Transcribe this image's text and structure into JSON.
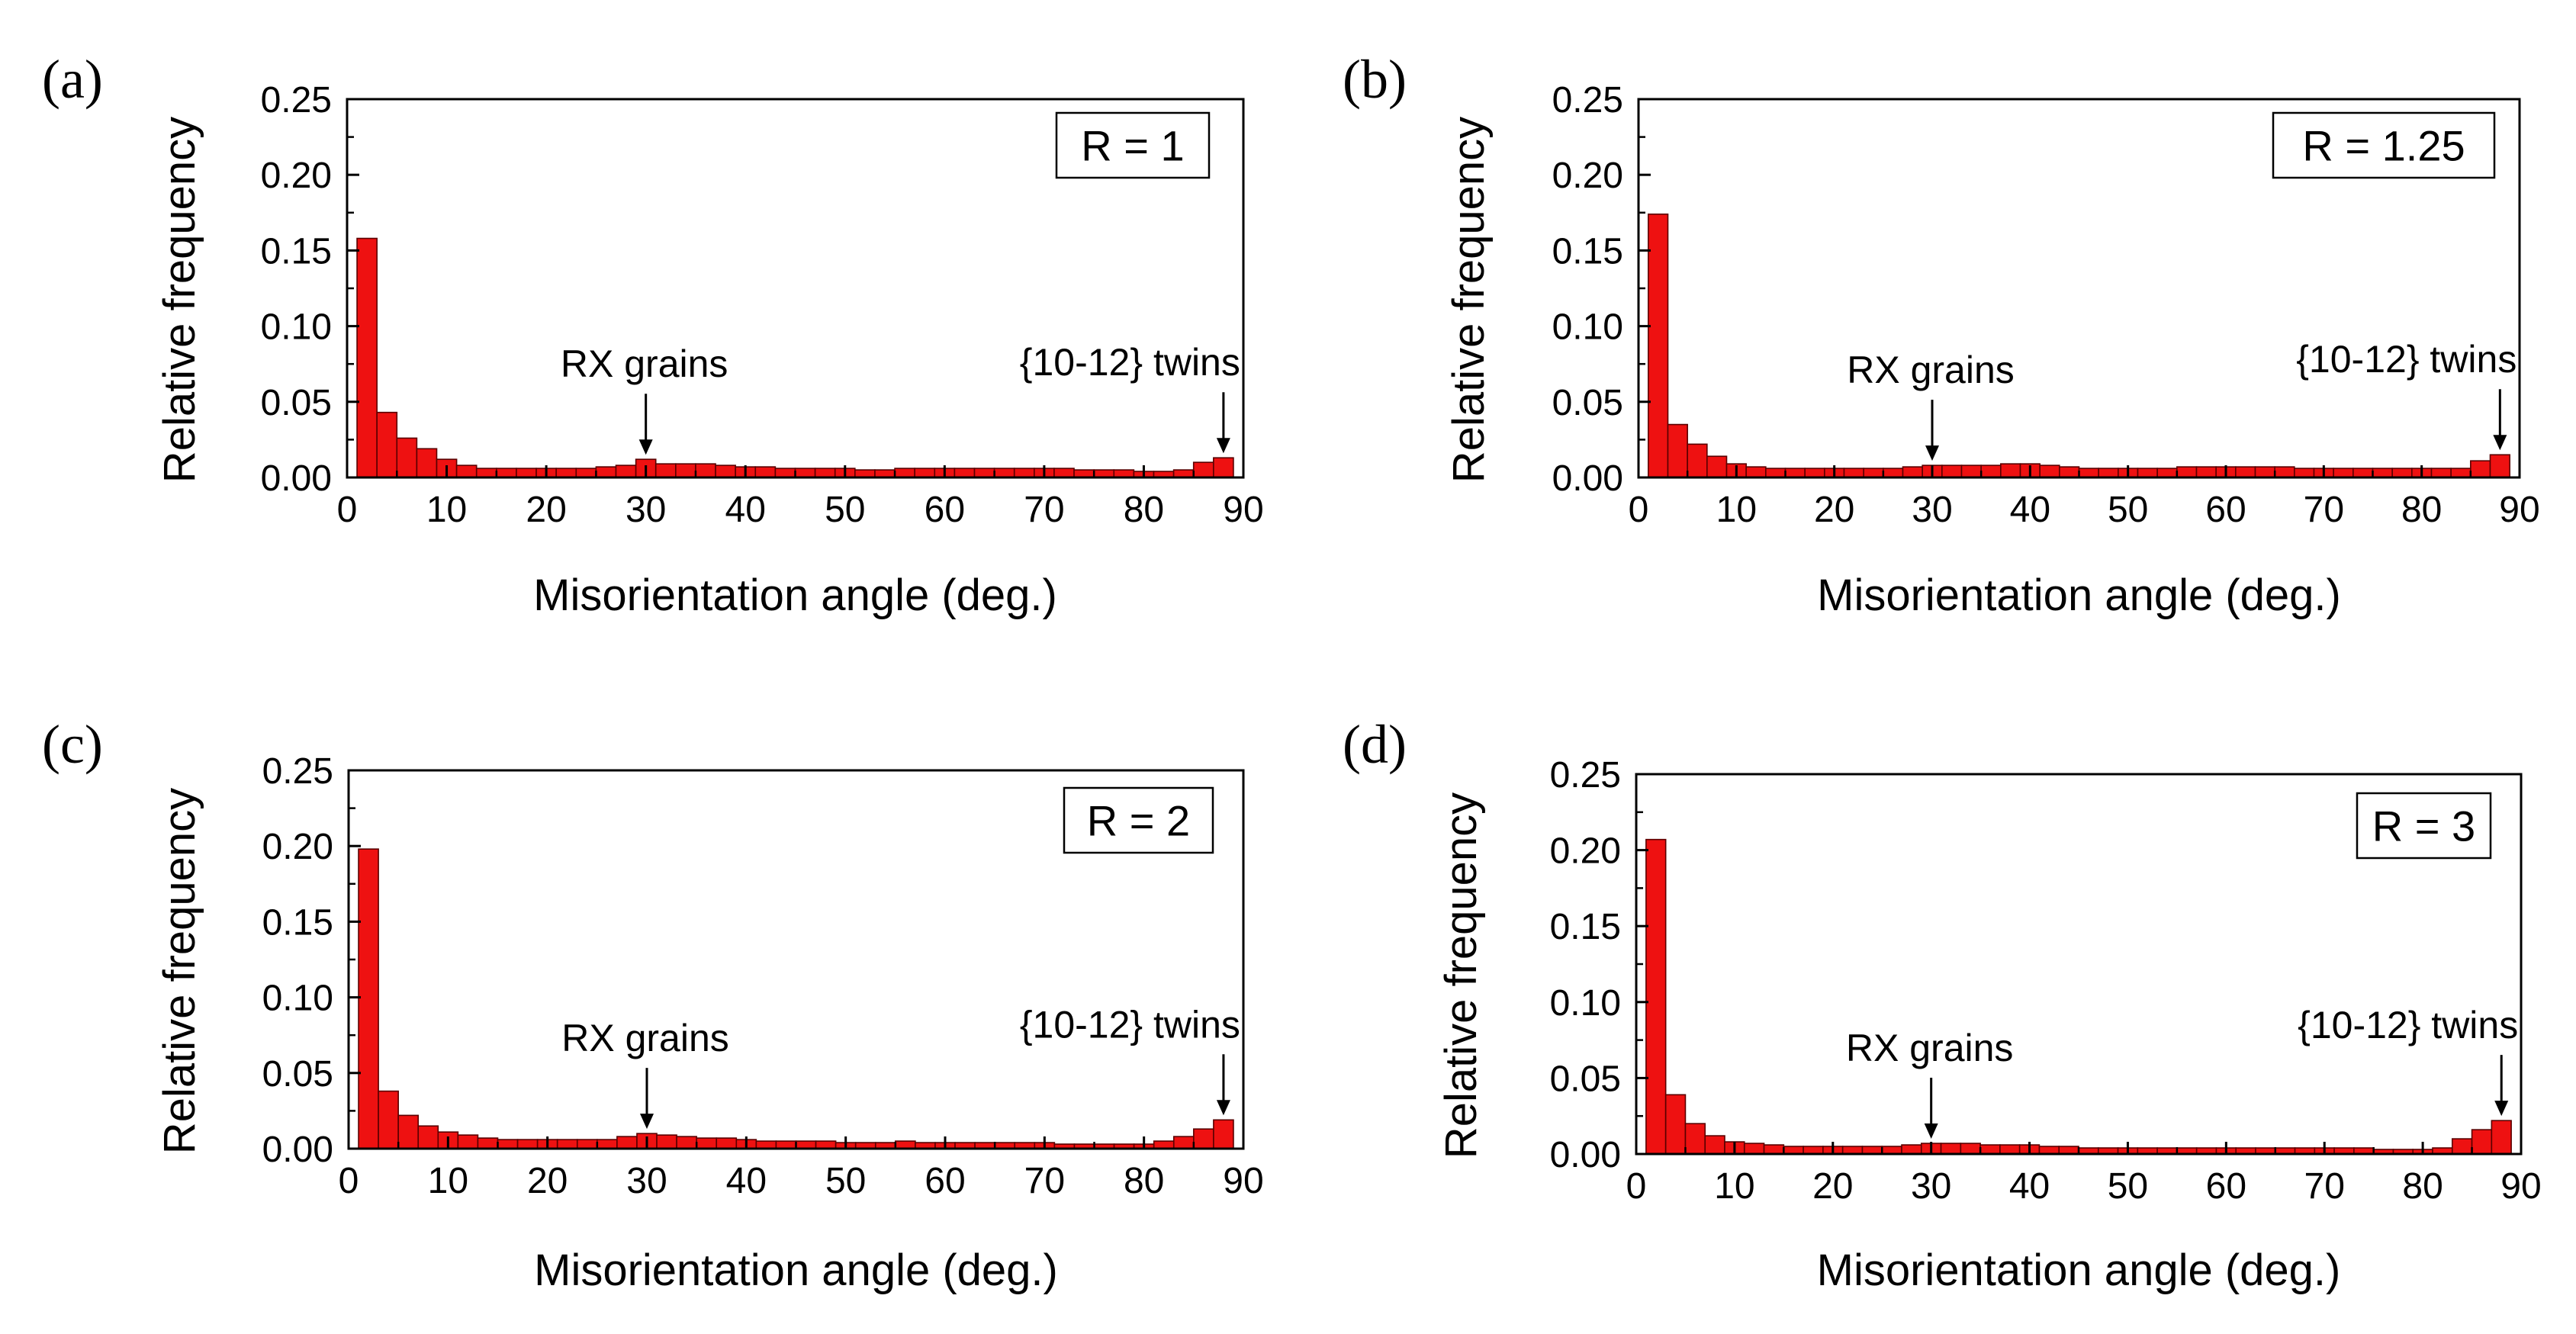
{
  "figure": {
    "panels": [
      {
        "letter": "(a)",
        "r_label": "R = 1",
        "bar_color": "#ee1111"
      },
      {
        "letter": "(b)",
        "r_label": "R = 1.25",
        "bar_color": "#ee1111"
      },
      {
        "letter": "(c)",
        "r_label": "R = 2",
        "bar_color": "#ee1111"
      },
      {
        "letter": "(d)",
        "r_label": "R = 3",
        "bar_color": "#ee1111"
      }
    ]
  },
  "chart_data": [
    {
      "type": "bar",
      "panel": "(a)",
      "label": "R = 1",
      "xlabel": "Misorientation angle (deg.)",
      "ylabel": "Relative frequency",
      "xlim": [
        0,
        90
      ],
      "ylim": [
        0,
        0.25
      ],
      "xticks": [
        "0",
        "10",
        "20",
        "30",
        "40",
        "50",
        "60",
        "70",
        "80",
        "90"
      ],
      "yticks": [
        "0.00",
        "0.05",
        "0.10",
        "0.15",
        "0.20",
        "0.25"
      ],
      "bin_width": 2,
      "x": [
        2,
        4,
        6,
        8,
        10,
        12,
        14,
        16,
        18,
        20,
        22,
        24,
        26,
        28,
        30,
        32,
        34,
        36,
        38,
        40,
        42,
        44,
        46,
        48,
        50,
        52,
        54,
        56,
        58,
        60,
        62,
        64,
        66,
        68,
        70,
        72,
        74,
        76,
        78,
        80,
        82,
        84,
        86,
        88
      ],
      "values": [
        0.158,
        0.043,
        0.026,
        0.019,
        0.012,
        0.008,
        0.006,
        0.006,
        0.006,
        0.006,
        0.006,
        0.006,
        0.007,
        0.008,
        0.012,
        0.009,
        0.009,
        0.009,
        0.008,
        0.007,
        0.007,
        0.006,
        0.006,
        0.006,
        0.006,
        0.005,
        0.005,
        0.006,
        0.006,
        0.006,
        0.006,
        0.006,
        0.006,
        0.006,
        0.006,
        0.006,
        0.005,
        0.005,
        0.005,
        0.004,
        0.004,
        0.005,
        0.01,
        0.013
      ],
      "annotations": [
        {
          "text": "RX grains",
          "x": 30
        },
        {
          "text": "{10-12} twins",
          "x": 88
        }
      ]
    },
    {
      "type": "bar",
      "panel": "(b)",
      "label": "R = 1.25",
      "xlabel": "Misorientation angle (deg.)",
      "ylabel": "Relative frequency",
      "xlim": [
        0,
        90
      ],
      "ylim": [
        0,
        0.25
      ],
      "xticks": [
        "0",
        "10",
        "20",
        "30",
        "40",
        "50",
        "60",
        "70",
        "80",
        "90"
      ],
      "yticks": [
        "0.00",
        "0.05",
        "0.10",
        "0.15",
        "0.20",
        "0.25"
      ],
      "bin_width": 2,
      "x": [
        2,
        4,
        6,
        8,
        10,
        12,
        14,
        16,
        18,
        20,
        22,
        24,
        26,
        28,
        30,
        32,
        34,
        36,
        38,
        40,
        42,
        44,
        46,
        48,
        50,
        52,
        54,
        56,
        58,
        60,
        62,
        64,
        66,
        68,
        70,
        72,
        74,
        76,
        78,
        80,
        82,
        84,
        86,
        88
      ],
      "values": [
        0.174,
        0.035,
        0.022,
        0.014,
        0.009,
        0.007,
        0.006,
        0.006,
        0.006,
        0.006,
        0.006,
        0.006,
        0.006,
        0.007,
        0.008,
        0.008,
        0.008,
        0.008,
        0.009,
        0.009,
        0.008,
        0.007,
        0.006,
        0.006,
        0.006,
        0.006,
        0.006,
        0.007,
        0.007,
        0.007,
        0.007,
        0.007,
        0.007,
        0.006,
        0.006,
        0.006,
        0.006,
        0.006,
        0.006,
        0.006,
        0.006,
        0.006,
        0.011,
        0.015
      ],
      "annotations": [
        {
          "text": "RX grains",
          "x": 30
        },
        {
          "text": "{10-12} twins",
          "x": 88
        }
      ]
    },
    {
      "type": "bar",
      "panel": "(c)",
      "label": "R = 2",
      "xlabel": "Misorientation angle (deg.)",
      "ylabel": "Relative frequency",
      "xlim": [
        0,
        90
      ],
      "ylim": [
        0,
        0.25
      ],
      "xticks": [
        "0",
        "10",
        "20",
        "30",
        "40",
        "50",
        "60",
        "70",
        "80",
        "90"
      ],
      "yticks": [
        "0.00",
        "0.05",
        "0.10",
        "0.15",
        "0.20",
        "0.25"
      ],
      "bin_width": 2,
      "x": [
        2,
        4,
        6,
        8,
        10,
        12,
        14,
        16,
        18,
        20,
        22,
        24,
        26,
        28,
        30,
        32,
        34,
        36,
        38,
        40,
        42,
        44,
        46,
        48,
        50,
        52,
        54,
        56,
        58,
        60,
        62,
        64,
        66,
        68,
        70,
        72,
        74,
        76,
        78,
        80,
        82,
        84,
        86,
        88
      ],
      "values": [
        0.198,
        0.038,
        0.022,
        0.015,
        0.011,
        0.009,
        0.007,
        0.006,
        0.006,
        0.006,
        0.006,
        0.006,
        0.006,
        0.008,
        0.01,
        0.009,
        0.008,
        0.007,
        0.007,
        0.006,
        0.005,
        0.005,
        0.005,
        0.005,
        0.004,
        0.004,
        0.004,
        0.005,
        0.004,
        0.004,
        0.004,
        0.004,
        0.004,
        0.004,
        0.004,
        0.003,
        0.003,
        0.003,
        0.003,
        0.003,
        0.005,
        0.008,
        0.013,
        0.019
      ],
      "annotations": [
        {
          "text": "RX grains",
          "x": 30
        },
        {
          "text": "{10-12} twins",
          "x": 88
        }
      ]
    },
    {
      "type": "bar",
      "panel": "(d)",
      "label": "R = 3",
      "xlabel": "Misorientation angle (deg.)",
      "ylabel": "Relative frequency",
      "xlim": [
        0,
        90
      ],
      "ylim": [
        0,
        0.25
      ],
      "xticks": [
        "0",
        "10",
        "20",
        "30",
        "40",
        "50",
        "60",
        "70",
        "80",
        "90"
      ],
      "yticks": [
        "0.00",
        "0.05",
        "0.10",
        "0.15",
        "0.20",
        "0.25"
      ],
      "bin_width": 2,
      "x": [
        2,
        4,
        6,
        8,
        10,
        12,
        14,
        16,
        18,
        20,
        22,
        24,
        26,
        28,
        30,
        32,
        34,
        36,
        38,
        40,
        42,
        44,
        46,
        48,
        50,
        52,
        54,
        56,
        58,
        60,
        62,
        64,
        66,
        68,
        70,
        72,
        74,
        76,
        78,
        80,
        82,
        84,
        86,
        88
      ],
      "values": [
        0.207,
        0.039,
        0.02,
        0.012,
        0.008,
        0.007,
        0.006,
        0.005,
        0.005,
        0.005,
        0.005,
        0.005,
        0.005,
        0.006,
        0.007,
        0.007,
        0.007,
        0.006,
        0.006,
        0.006,
        0.005,
        0.005,
        0.004,
        0.004,
        0.004,
        0.004,
        0.004,
        0.004,
        0.004,
        0.004,
        0.004,
        0.004,
        0.004,
        0.004,
        0.004,
        0.004,
        0.004,
        0.003,
        0.003,
        0.003,
        0.004,
        0.01,
        0.016,
        0.022
      ],
      "annotations": [
        {
          "text": "RX grains",
          "x": 30
        },
        {
          "text": "{10-12} twins",
          "x": 88
        }
      ]
    }
  ]
}
